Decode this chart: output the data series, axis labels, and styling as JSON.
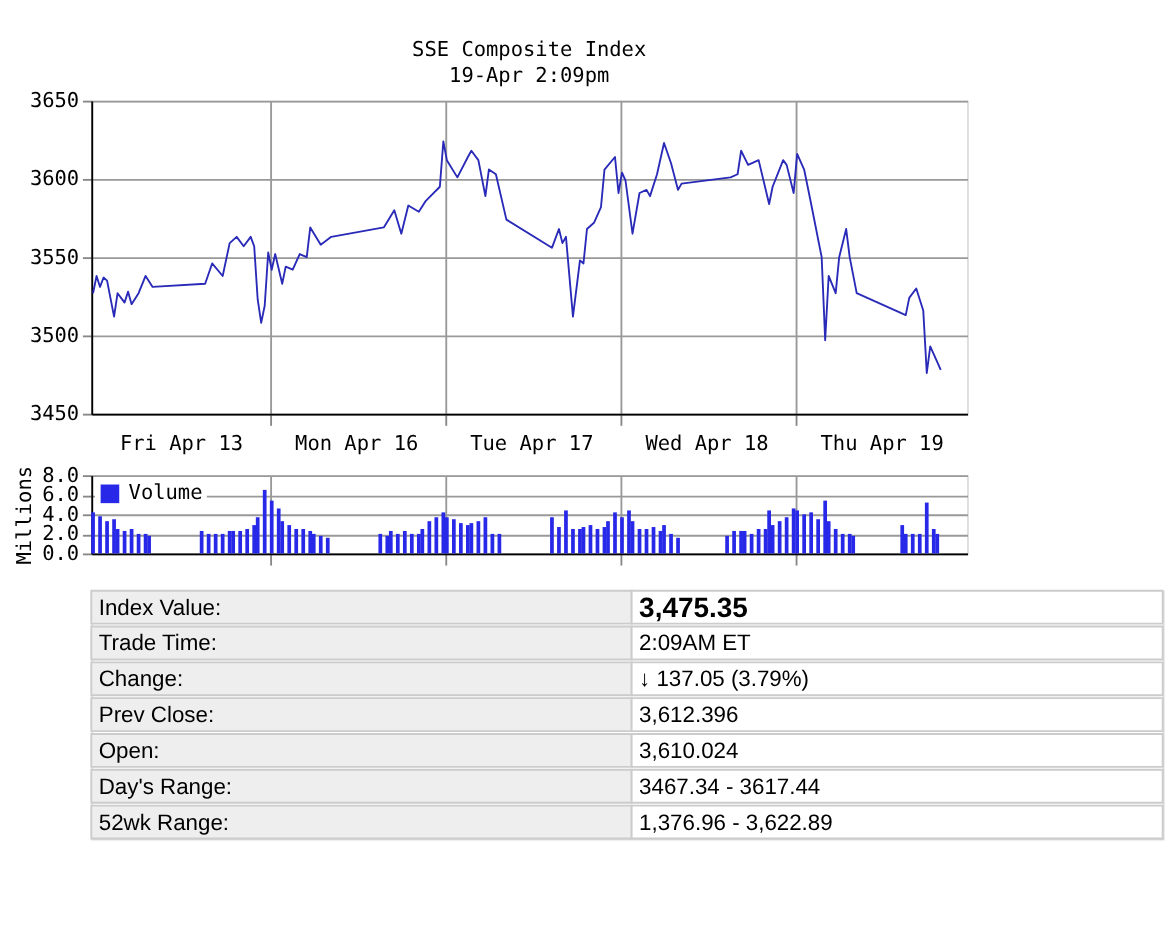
{
  "chart_data": [
    {
      "type": "line",
      "title": "SSE Composite Index",
      "subtitle": "19-Apr 2:09pm",
      "grid": true,
      "ylim": [
        3450,
        3650
      ],
      "yticks": [
        3450,
        3500,
        3550,
        3600,
        3650
      ],
      "categories": [
        null,
        null,
        null,
        null,
        null,
        null,
        null,
        null,
        null,
        null,
        null,
        null,
        null,
        null,
        null,
        null,
        null,
        null,
        null,
        null,
        null,
        null,
        null,
        null,
        null,
        "Fri Apr 13",
        null,
        null,
        null,
        null,
        null,
        null,
        null,
        null,
        null,
        null,
        null,
        null,
        null,
        null,
        null,
        null,
        null,
        null,
        null,
        null,
        null,
        null,
        null,
        null,
        null,
        null,
        null,
        null,
        null,
        null,
        null,
        null,
        null,
        null,
        null,
        null,
        null,
        null,
        null,
        null,
        null,
        null,
        null,
        null,
        null,
        null,
        null,
        null,
        null,
        "Mon Apr 16",
        null,
        null,
        null,
        null,
        null,
        null,
        null,
        null,
        null,
        null,
        null,
        null,
        null,
        null,
        null,
        null,
        null,
        null,
        null,
        null,
        null,
        null,
        null,
        null,
        null,
        null,
        null,
        null,
        null,
        null,
        null,
        null,
        null,
        null,
        null,
        null,
        null,
        null,
        null,
        null,
        null,
        null,
        null,
        null,
        null,
        null,
        null,
        null,
        null,
        "Tue Apr 17",
        null,
        null,
        null,
        null,
        null,
        null,
        null,
        null,
        null,
        null,
        null,
        null,
        null,
        null,
        null,
        null,
        null,
        null,
        null,
        null,
        null,
        null,
        null,
        null,
        null,
        null,
        null,
        null,
        null,
        null,
        null,
        null,
        null,
        null,
        null,
        null,
        null,
        null,
        null,
        null,
        null,
        null,
        null,
        null,
        null,
        null,
        null,
        null,
        null,
        "Wed Apr 18",
        null,
        null,
        null,
        null,
        null,
        null,
        null,
        null,
        null,
        null,
        null,
        null,
        null,
        null,
        null,
        null,
        null,
        null,
        null,
        null,
        null,
        null,
        null,
        null,
        null,
        null,
        null,
        null,
        null,
        null,
        null,
        null,
        null,
        null,
        null,
        null,
        null,
        null,
        null,
        null,
        null,
        null,
        null,
        null,
        null,
        null,
        null,
        null,
        null,
        "Thu Apr 19",
        null,
        null,
        null,
        null,
        null,
        null,
        null,
        null,
        null,
        null,
        null,
        null,
        null,
        null,
        null,
        null,
        null,
        null,
        null,
        null,
        null,
        null,
        null,
        null
      ],
      "series": [
        {
          "color": "#2a2ab8",
          "values": [
            3527,
            3538,
            3531,
            3537,
            3535,
            null,
            3512,
            3527,
            null,
            3521,
            3528,
            3520,
            null,
            3527,
            null,
            3538,
            null,
            3531,
            null,
            null,
            null,
            null,
            null,
            null,
            null,
            null,
            null,
            null,
            null,
            null,
            null,
            null,
            3533,
            null,
            3546,
            null,
            null,
            3538,
            null,
            3559,
            null,
            3563,
            null,
            3557,
            null,
            3563,
            3557,
            3523,
            3508,
            3519,
            3553,
            3542,
            3552,
            null,
            3533,
            3544,
            null,
            3542,
            null,
            3552,
            null,
            3550,
            3569,
            null,
            null,
            3558,
            null,
            null,
            3563,
            null,
            null,
            null,
            null,
            null,
            null,
            null,
            null,
            null,
            null,
            null,
            null,
            null,
            null,
            3569,
            null,
            null,
            3580,
            null,
            3565,
            null,
            3583,
            null,
            null,
            3579,
            null,
            3586,
            null,
            null,
            null,
            3595,
            3624,
            3612,
            null,
            null,
            3601,
            null,
            null,
            3614,
            3618,
            null,
            3612,
            null,
            3589,
            3606,
            null,
            3603,
            null,
            null,
            3574,
            null,
            null,
            null,
            null,
            null,
            null,
            null,
            null,
            null,
            null,
            null,
            null,
            3556,
            null,
            3568,
            3559,
            3563,
            null,
            3512,
            null,
            3548,
            3546,
            3568,
            null,
            3572,
            null,
            3582,
            3606,
            null,
            null,
            3614,
            3591,
            3604,
            3599,
            null,
            3565,
            null,
            3591,
            null,
            3593,
            3589,
            null,
            3603,
            null,
            3623,
            null,
            3610,
            null,
            3593,
            3597,
            null,
            null,
            null,
            null,
            null,
            null,
            null,
            null,
            null,
            null,
            null,
            null,
            null,
            3601,
            null,
            3603,
            3618,
            null,
            3609,
            null,
            null,
            3612,
            null,
            null,
            3584,
            3595,
            null,
            null,
            3612,
            3609,
            null,
            3591,
            3616,
            null,
            3606,
            null,
            3584,
            null,
            null,
            3550,
            3497,
            3538,
            null,
            3527,
            3550,
            null,
            3568,
            3550,
            null,
            3527,
            null,
            null,
            null,
            null,
            null,
            null,
            null,
            null,
            null,
            null,
            null,
            null,
            null,
            3513,
            3524,
            null,
            3530,
            null,
            3516,
            3476,
            3493,
            null,
            null,
            3478,
            null,
            null,
            null,
            null,
            null,
            null,
            null
          ]
        }
      ]
    },
    {
      "type": "bar",
      "ylabel": "Millions",
      "grid": true,
      "legend": "top left",
      "tick_labels": "y",
      "ylim": [
        0,
        8
      ],
      "yticks": [
        {
          "value": 0,
          "label": "0.0"
        },
        {
          "value": 2,
          "label": "2.0"
        },
        {
          "value": 4,
          "label": "4.0"
        },
        {
          "value": 6,
          "label": "6.0"
        },
        {
          "value": 8,
          "label": "8.0"
        }
      ],
      "categories": [
        null,
        null,
        null,
        null,
        null,
        null,
        null,
        null,
        null,
        null,
        null,
        null,
        null,
        null,
        null,
        null,
        null,
        null,
        null,
        null,
        null,
        null,
        null,
        null,
        null,
        null,
        null,
        null,
        null,
        null,
        null,
        null,
        null,
        null,
        null,
        null,
        null,
        null,
        null,
        null,
        null,
        null,
        null,
        null,
        null,
        null,
        null,
        null,
        null,
        null,
        null,
        null,
        null,
        null,
        null,
        null,
        null,
        null,
        null,
        null,
        null,
        null,
        null,
        null,
        null,
        null,
        null,
        null,
        null,
        null,
        null,
        null,
        null,
        null,
        null,
        null,
        null,
        null,
        null,
        null,
        null,
        null,
        null,
        null,
        null,
        null,
        null,
        null,
        null,
        null,
        null,
        null,
        null,
        null,
        null,
        null,
        null,
        null,
        null,
        null,
        null,
        null,
        null,
        null,
        null,
        null,
        null,
        null,
        null,
        null,
        null,
        null,
        null,
        null,
        null,
        null,
        null,
        null,
        null,
        null,
        null,
        null,
        null,
        null,
        null,
        null,
        null,
        null,
        null,
        null,
        null,
        null,
        null,
        null,
        null,
        null,
        null,
        null,
        null,
        null,
        null,
        null,
        null,
        null,
        null,
        null,
        null,
        null,
        null,
        null,
        null,
        null,
        null,
        null,
        null,
        null,
        null,
        null,
        null,
        null,
        null,
        null,
        null,
        null,
        null,
        null,
        null,
        null,
        null,
        null,
        null,
        null,
        null,
        null,
        null,
        null,
        null,
        null,
        null,
        null,
        null,
        null,
        null,
        null,
        null,
        null,
        null,
        null,
        null,
        null,
        null,
        null,
        null,
        null,
        null,
        null,
        null,
        null,
        null,
        null,
        null,
        null,
        null,
        null,
        null,
        null,
        null,
        null,
        null,
        null,
        null,
        null,
        null,
        null,
        null,
        null,
        null,
        null,
        null,
        null,
        null,
        null,
        null,
        null,
        null,
        null,
        null,
        null,
        null,
        null,
        null,
        null,
        null,
        null,
        null,
        null,
        null,
        null,
        null,
        null,
        null,
        null,
        null,
        null,
        null,
        null,
        null,
        null,
        null,
        null
      ],
      "series": [
        {
          "name": "Volume",
          "color": "#2828e8",
          "values": [
            4.2,
            null,
            3.8,
            null,
            3.3,
            null,
            3.5,
            2.5,
            null,
            2.3,
            null,
            2.5,
            null,
            2.0,
            null,
            2.0,
            1.8,
            null,
            null,
            null,
            null,
            null,
            null,
            null,
            null,
            null,
            null,
            null,
            null,
            null,
            null,
            2.3,
            null,
            2.0,
            null,
            2.0,
            null,
            2.0,
            null,
            2.3,
            2.3,
            null,
            2.3,
            null,
            2.5,
            null,
            2.9,
            3.7,
            null,
            6.5,
            null,
            5.4,
            null,
            4.6,
            3.3,
            null,
            2.9,
            null,
            2.5,
            null,
            2.5,
            null,
            2.3,
            2.0,
            null,
            1.8,
            null,
            1.6,
            null,
            null,
            null,
            null,
            null,
            null,
            null,
            null,
            null,
            null,
            null,
            null,
            null,
            null,
            2.0,
            null,
            1.8,
            2.3,
            null,
            2.0,
            null,
            2.3,
            null,
            2.0,
            null,
            2.0,
            2.5,
            null,
            3.3,
            null,
            3.7,
            null,
            4.2,
            3.7,
            null,
            3.5,
            null,
            3.1,
            null,
            2.9,
            3.1,
            null,
            3.3,
            null,
            3.7,
            null,
            2.0,
            null,
            2.0,
            null,
            null,
            null,
            null,
            null,
            null,
            null,
            null,
            null,
            null,
            null,
            null,
            null,
            null,
            3.7,
            null,
            2.7,
            null,
            4.4,
            null,
            2.5,
            null,
            2.5,
            2.7,
            null,
            2.9,
            null,
            2.5,
            null,
            2.7,
            3.3,
            null,
            4.2,
            null,
            3.7,
            null,
            4.4,
            3.3,
            null,
            2.5,
            null,
            2.5,
            null,
            2.7,
            null,
            2.3,
            2.9,
            null,
            2.0,
            null,
            1.6,
            null,
            null,
            null,
            null,
            null,
            null,
            null,
            null,
            null,
            null,
            null,
            null,
            null,
            1.8,
            null,
            2.3,
            null,
            2.3,
            2.3,
            null,
            2.0,
            null,
            2.5,
            null,
            2.5,
            4.4,
            2.9,
            null,
            3.3,
            null,
            3.7,
            null,
            4.6,
            4.4,
            null,
            4.0,
            null,
            4.2,
            null,
            3.5,
            null,
            5.4,
            3.3,
            null,
            2.5,
            null,
            2.0,
            null,
            2.0,
            1.8,
            null,
            null,
            null,
            null,
            null,
            null,
            null,
            null,
            null,
            null,
            null,
            null,
            null,
            2.9,
            2.0,
            null,
            2.0,
            null,
            2.0,
            null,
            5.2,
            null,
            2.5,
            2.0,
            null,
            null,
            null,
            null,
            null,
            null,
            null,
            null
          ]
        }
      ]
    },
    {
      "type": "other",
      "annotations": [
        "Index Value:",
        "3,475.35",
        "Trade Time:",
        "2:09AM ET",
        "Change:",
        "↓ 137.05 (3.79%)",
        "Prev Close:",
        "3,612.396",
        "Open:",
        "3,610.024",
        "Day's Range:",
        "3467.34 - 3617.44",
        "52wk Range:",
        "1,376.96 - 3,622.89"
      ]
    }
  ]
}
